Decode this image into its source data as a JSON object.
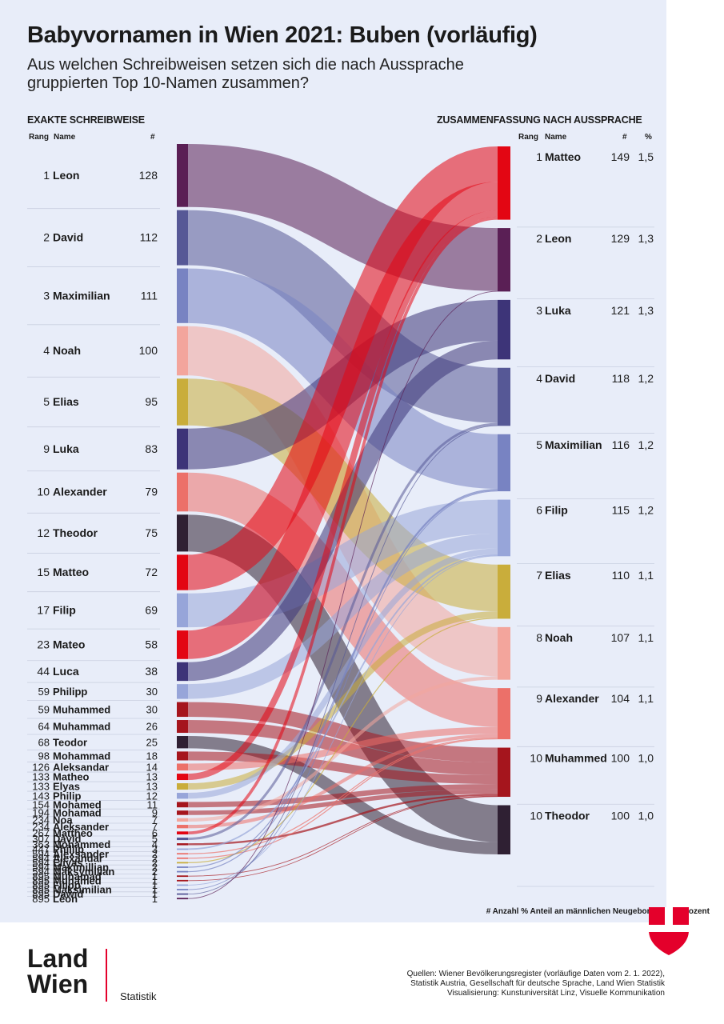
{
  "header": {
    "title": "Babyvornamen in Wien 2021: Buben (vorläufig)",
    "subtitle": "Aus welchen Schreibweisen setzen sich die nach Aussprache gruppierten Top 10-Namen zusammen?"
  },
  "left_table": {
    "heading": "EXAKTE SCHREIBWEISE",
    "col_rank": "Rang",
    "col_name": "Name",
    "col_count": "#"
  },
  "right_table": {
    "heading": "ZUSAMMENFASSUNG NACH AUSSPRACHE",
    "col_rank": "Rang",
    "col_name": "Name",
    "col_count": "#",
    "col_pct": "%"
  },
  "footnote": "# Anzahl  % Anteil an männlichen Neugeborenen in Prozent",
  "logo": {
    "text": "Land\nWien",
    "subtitle": "Statistik"
  },
  "sources": "Quellen: Wiener Bevölkerungsregister (vorläufige Daten vom 2. 1. 2022),\nStatistik Austria, Gesellschaft für deutsche Sprache, Land Wien Statistik\nVisualisierung: Kunstuniversität Linz, Visuelle Kommunikation",
  "chart_data": {
    "type": "sankey",
    "title": "Babyvornamen in Wien 2021: Buben (vorläufig)",
    "colors": {
      "Matteo": "#e30613",
      "Leon": "#5a1f55",
      "Luka": "#3d3478",
      "David": "#565896",
      "Maximilian": "#7883c2",
      "Filip": "#97a5d9",
      "Elias": "#c9ad3b",
      "Noah": "#f3a59c",
      "Alexander": "#ec7069",
      "Muhammed": "#a5151d",
      "Theodor": "#2f2033"
    },
    "targets": [
      {
        "rank": "1",
        "name": "Matteo",
        "count": 149,
        "pct": "1,5"
      },
      {
        "rank": "2",
        "name": "Leon",
        "count": 129,
        "pct": "1,3"
      },
      {
        "rank": "3",
        "name": "Luka",
        "count": 121,
        "pct": "1,3"
      },
      {
        "rank": "4",
        "name": "David",
        "count": 118,
        "pct": "1,2"
      },
      {
        "rank": "5",
        "name": "Maximilian",
        "count": 116,
        "pct": "1,2"
      },
      {
        "rank": "6",
        "name": "Filip",
        "count": 115,
        "pct": "1,2"
      },
      {
        "rank": "7",
        "name": "Elias",
        "count": 110,
        "pct": "1,1"
      },
      {
        "rank": "8",
        "name": "Noah",
        "count": 107,
        "pct": "1,1"
      },
      {
        "rank": "9",
        "name": "Alexander",
        "count": 104,
        "pct": "1,1"
      },
      {
        "rank": "10",
        "name": "Muhammed",
        "count": 100,
        "pct": "1,0"
      },
      {
        "rank": "10",
        "name": "Theodor",
        "count": 100,
        "pct": "1,0"
      }
    ],
    "sources": [
      {
        "rank": "1",
        "name": "Leon",
        "count": 128,
        "target": "Leon"
      },
      {
        "rank": "2",
        "name": "David",
        "count": 112,
        "target": "David"
      },
      {
        "rank": "3",
        "name": "Maximilian",
        "count": 111,
        "target": "Maximilian"
      },
      {
        "rank": "4",
        "name": "Noah",
        "count": 100,
        "target": "Noah"
      },
      {
        "rank": "5",
        "name": "Elias",
        "count": 95,
        "target": "Elias"
      },
      {
        "rank": "9",
        "name": "Luka",
        "count": 83,
        "target": "Luka"
      },
      {
        "rank": "10",
        "name": "Alexander",
        "count": 79,
        "target": "Alexander"
      },
      {
        "rank": "12",
        "name": "Theodor",
        "count": 75,
        "target": "Theodor"
      },
      {
        "rank": "15",
        "name": "Matteo",
        "count": 72,
        "target": "Matteo"
      },
      {
        "rank": "17",
        "name": "Filip",
        "count": 69,
        "target": "Filip"
      },
      {
        "rank": "23",
        "name": "Mateo",
        "count": 58,
        "target": "Matteo"
      },
      {
        "rank": "44",
        "name": "Luca",
        "count": 38,
        "target": "Luka"
      },
      {
        "rank": "59",
        "name": "Philipp",
        "count": 30,
        "target": "Filip"
      },
      {
        "rank": "59",
        "name": "Muhammed",
        "count": 30,
        "target": "Muhammed"
      },
      {
        "rank": "64",
        "name": "Muhammad",
        "count": 26,
        "target": "Muhammed"
      },
      {
        "rank": "68",
        "name": "Teodor",
        "count": 25,
        "target": "Theodor"
      },
      {
        "rank": "98",
        "name": "Mohammad",
        "count": 18,
        "target": "Muhammed"
      },
      {
        "rank": "126",
        "name": "Aleksandar",
        "count": 14,
        "target": "Alexander"
      },
      {
        "rank": "133",
        "name": "Matheo",
        "count": 13,
        "target": "Matteo"
      },
      {
        "rank": "133",
        "name": "Elyas",
        "count": 13,
        "target": "Elias"
      },
      {
        "rank": "143",
        "name": "Philip",
        "count": 12,
        "target": "Filip"
      },
      {
        "rank": "154",
        "name": "Mohamed",
        "count": 11,
        "target": "Muhammed"
      },
      {
        "rank": "194",
        "name": "Mohamad",
        "count": 9,
        "target": "Muhammed"
      },
      {
        "rank": "234",
        "name": "Noa",
        "count": 7,
        "target": "Noah"
      },
      {
        "rank": "234",
        "name": "Aleksander",
        "count": 7,
        "target": "Alexander"
      },
      {
        "rank": "267",
        "name": "Mattheo",
        "count": 6,
        "target": "Matteo"
      },
      {
        "rank": "307",
        "name": "Dávid",
        "count": 5,
        "target": "David"
      },
      {
        "rank": "363",
        "name": "Mohammed",
        "count": 4,
        "target": "Muhammed"
      },
      {
        "rank": "447",
        "name": "Phillip",
        "count": 3,
        "target": "Filip"
      },
      {
        "rank": "594",
        "name": "Alexsander",
        "count": 2,
        "target": "Alexander"
      },
      {
        "rank": "594",
        "name": "Alexandar",
        "count": 2,
        "target": "Alexander"
      },
      {
        "rank": "594",
        "name": "Eliyas",
        "count": 2,
        "target": "Elias"
      },
      {
        "rank": "594",
        "name": "Maximillian",
        "count": 2,
        "target": "Maximilian"
      },
      {
        "rank": "594",
        "name": "Maksymilian",
        "count": 2,
        "target": "Maximilian"
      },
      {
        "rank": "895",
        "name": "Muhamad",
        "count": 1,
        "target": "Muhammed"
      },
      {
        "rank": "895",
        "name": "Muhamed",
        "count": 1,
        "target": "Muhammed"
      },
      {
        "rank": "895",
        "name": "Filipp",
        "count": 1,
        "target": "Filip"
      },
      {
        "rank": "895",
        "name": "Maksimilian",
        "count": 1,
        "target": "Maximilian"
      },
      {
        "rank": "895",
        "name": "Dawid",
        "count": 1,
        "target": "David"
      },
      {
        "rank": "895",
        "name": "Léon",
        "count": 1,
        "target": "Leon"
      }
    ]
  }
}
